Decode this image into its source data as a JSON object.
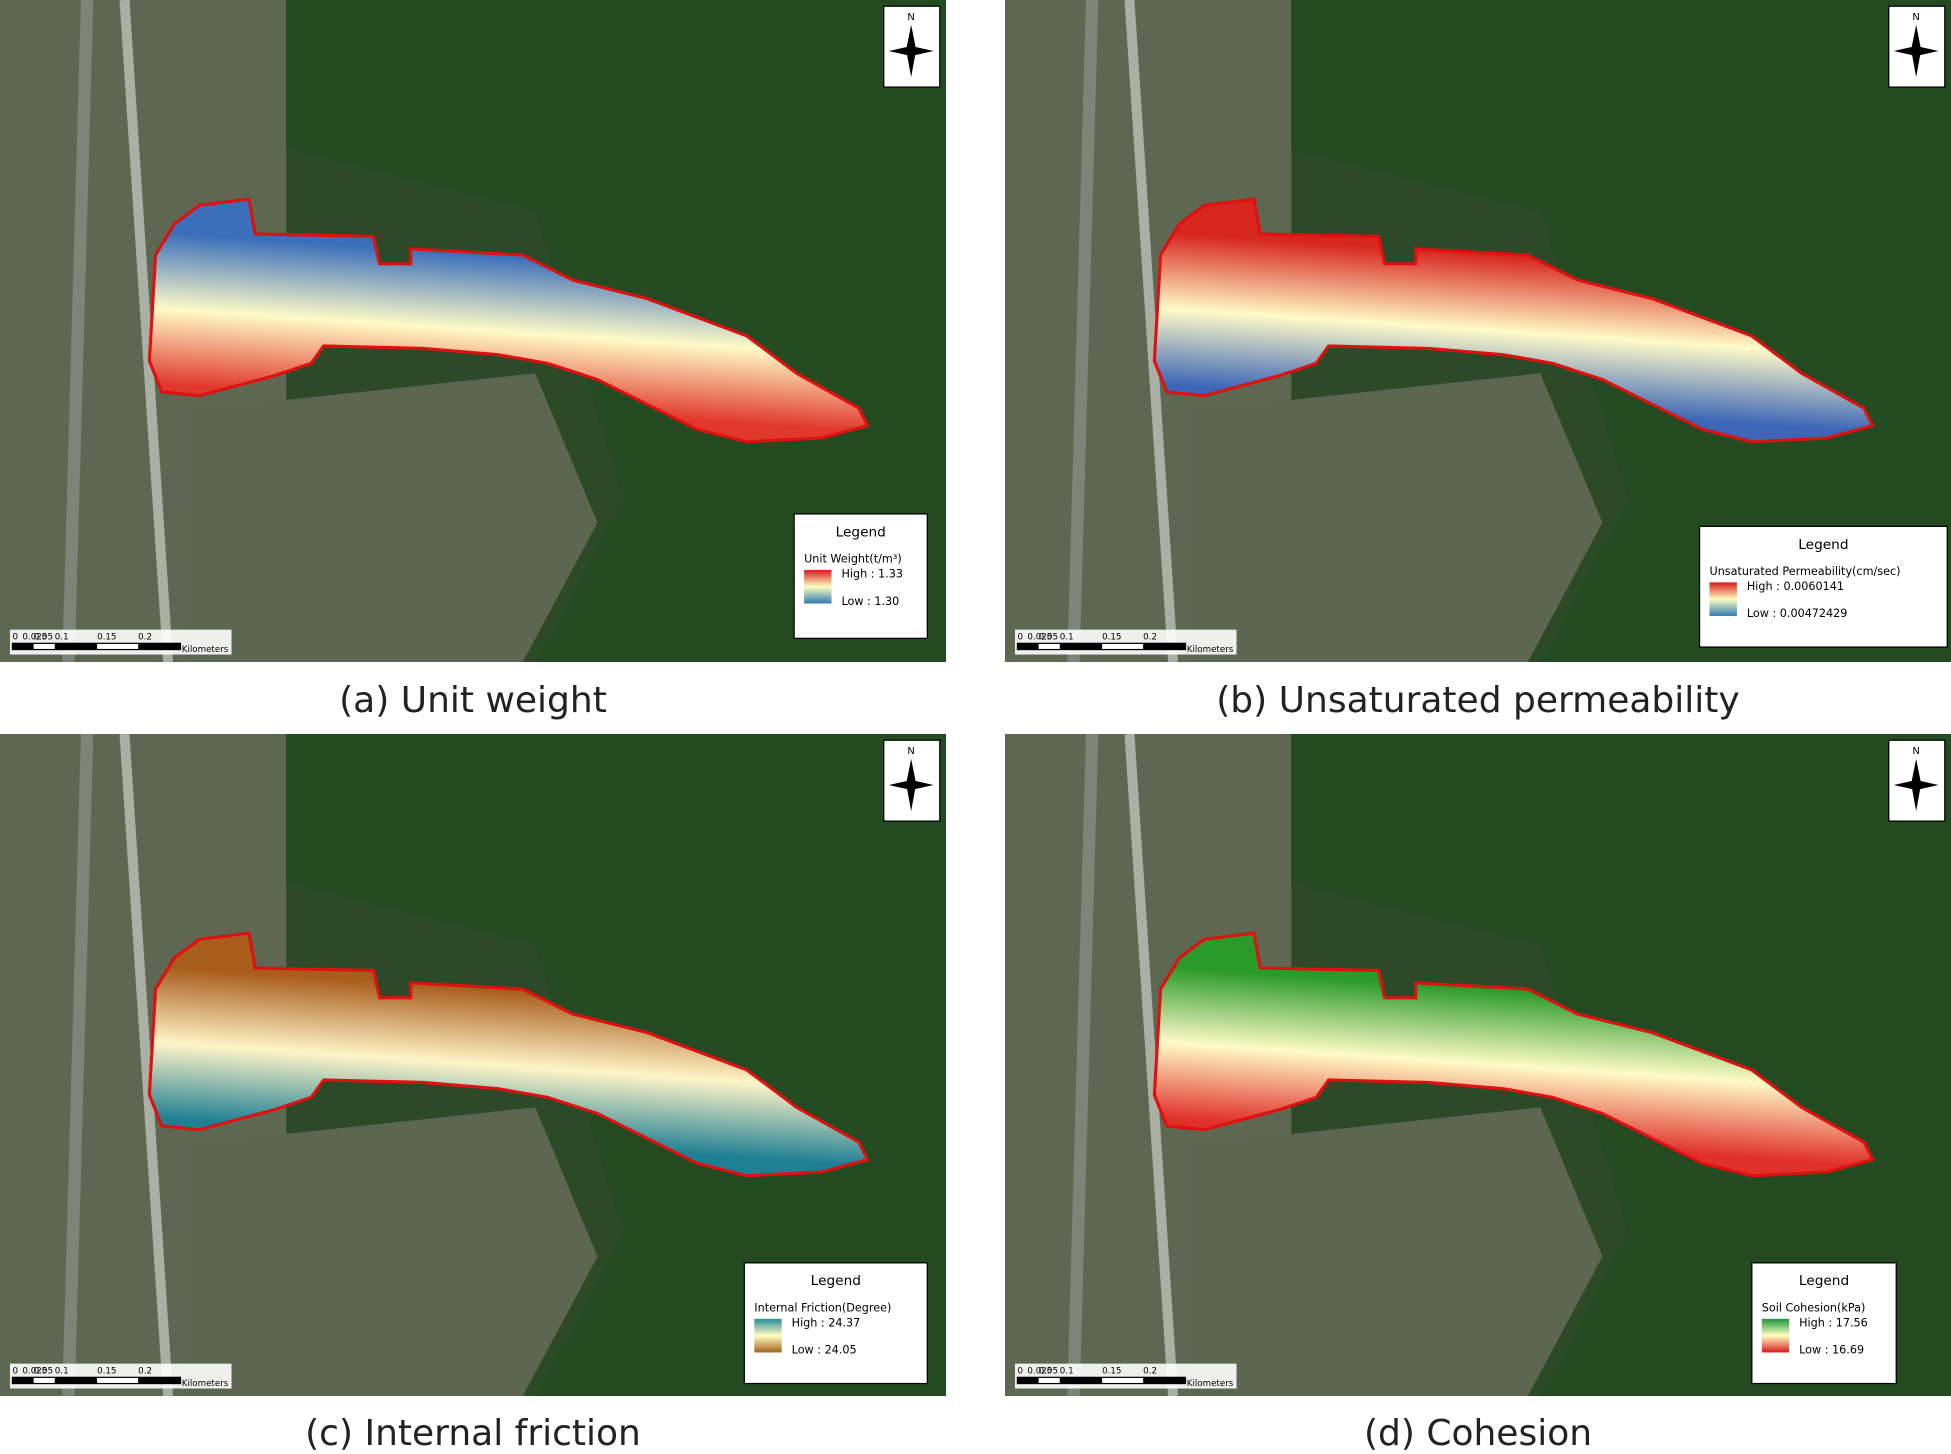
{
  "north": "N",
  "scale_bar": {
    "labels": [
      "0",
      "0.025",
      "0.05",
      "0.1",
      "0.15",
      "0.2"
    ],
    "unit": "Kilometers"
  },
  "panels": [
    {
      "caption": "(a) Unit weight",
      "legend": {
        "title": "Legend",
        "field": "Unit Weight(t/m³)",
        "high": "High : 1.33",
        "low": "Low : 1.30"
      },
      "ramp": [
        "#d7191c",
        "#ffffbf",
        "#2c7bb6"
      ],
      "map_gradient": [
        "#3b6fba",
        "#fffbc8",
        "#e0382c"
      ]
    },
    {
      "caption": "(b) Unsaturated permeability",
      "legend": {
        "title": "Legend",
        "field": "Unsaturated Permeability(cm/sec)",
        "high": "High : 0.0060141",
        "low": "Low : 0.00472429"
      },
      "ramp": [
        "#d7191c",
        "#ffffbf",
        "#2c7bb6"
      ],
      "map_gradient": [
        "#d7261e",
        "#fffbc8",
        "#3d66b6"
      ]
    },
    {
      "caption": "(c) Internal friction",
      "legend": {
        "title": "Legend",
        "field": "Internal Friction(Degree)",
        "high": "High : 24.37",
        "low": "Low : 24.05"
      },
      "ramp": [
        "#2a8b9a",
        "#ffffbf",
        "#a6611a"
      ],
      "map_gradient": [
        "#a85d1c",
        "#fff5c8",
        "#1f7f93"
      ]
    },
    {
      "caption": "(d) Cohesion",
      "legend": {
        "title": "Legend",
        "field": "Soil Cohesion(kPa)",
        "high": "High : 17.56",
        "low": "Low : 16.69"
      },
      "ramp": [
        "#1a9641",
        "#ffffbf",
        "#d7191c"
      ],
      "map_gradient": [
        "#2a9a2a",
        "#fffbc8",
        "#e0302a"
      ]
    }
  ]
}
